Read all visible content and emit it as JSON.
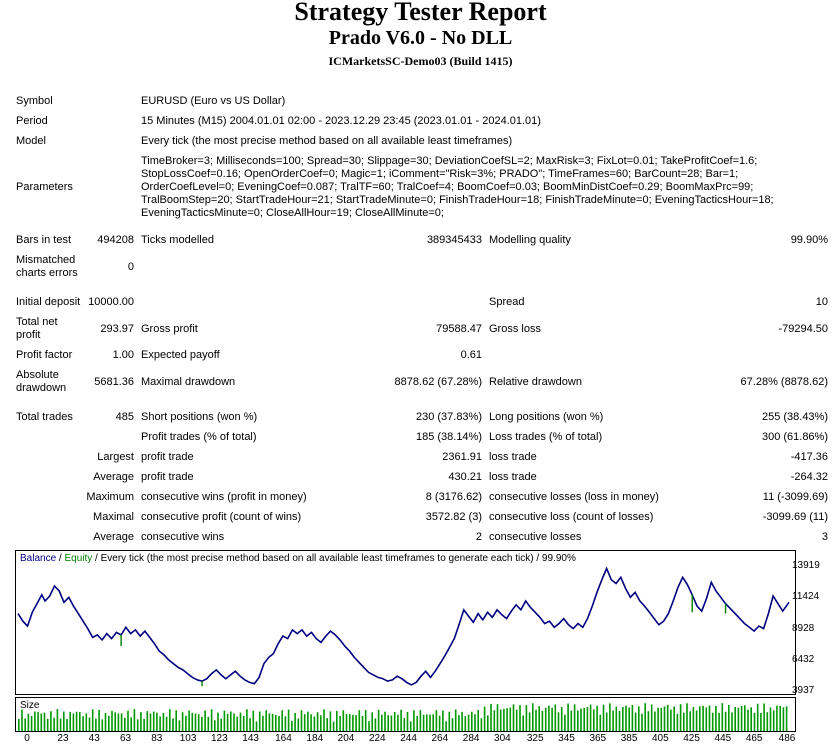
{
  "report": {
    "title": "Strategy Tester Report",
    "subtitle": "Prado V6.0 - No DLL",
    "server": "ICMarketsSC-Demo03 (Build 1415)"
  },
  "settings": {
    "symbol_label": "Symbol",
    "symbol": "EURUSD (Euro vs US Dollar)",
    "period_label": "Period",
    "period": "15 Minutes (M15) 2004.01.01 02:00 - 2023.12.29 23:45 (2023.01.01 - 2024.01.01)",
    "model_label": "Model",
    "model": "Every tick (the most precise method based on all available least timeframes)",
    "parameters_label": "Parameters",
    "parameters": "TimeBroker=3; Milliseconds=100; Spread=30; Slippage=30; DeviationCoefSL=2; MaxRisk=3; FixLot=0.01; TakeProfitCoef=1.6; StopLossCoef=0.16; OpenOrderCoef=0; Magic=1; iComment=\"Risk=3%; PRADO\"; TimeFrames=60; BarCount=28; Bar=1; OrderCoefLevel=0; EveningCoef=0.087; TralTF=60; TralCoef=4; BoomCoef=0.03; BoomMinDistCoef=0.29; BoomMaxPrc=99; TralBoomStep=20; StartTradeHour=21; StartTradeMinute=0; FinishTradeHour=18; FinishTradeMinute=0; EveningTacticsHour=18; EveningTacticsMinute=0; CloseAllHour=19; CloseAllMinute=0;"
  },
  "stats": {
    "bars_label": "Bars in test",
    "bars": "494208",
    "ticks_label": "Ticks modelled",
    "ticks": "389345433",
    "quality_label": "Modelling quality",
    "quality": "99.90%",
    "mismatch_label": "Mismatched charts errors",
    "mismatch": "0",
    "deposit_label": "Initial deposit",
    "deposit": "10000.00",
    "spread_label": "Spread",
    "spread": "10",
    "net_label": "Total net profit",
    "net": "293.97",
    "gross_profit_label": "Gross profit",
    "gross_profit": "79588.47",
    "gross_loss_label": "Gross loss",
    "gross_loss": "-79294.50",
    "pf_label": "Profit factor",
    "pf": "1.00",
    "payoff_label": "Expected payoff",
    "payoff": "0.61",
    "abs_dd_label": "Absolute drawdown",
    "abs_dd": "5681.36",
    "max_dd_label": "Maximal drawdown",
    "max_dd": "8878.62 (67.28%)",
    "rel_dd_label": "Relative drawdown",
    "rel_dd": "67.28% (8878.62)",
    "trades_label": "Total trades",
    "trades": "485",
    "short_label": "Short positions (won %)",
    "short": "230 (37.83%)",
    "long_label": "Long positions (won %)",
    "long": "255 (38.43%)",
    "ptrades_label": "Profit trades (% of total)",
    "ptrades": "185 (38.14%)",
    "ltrades_label": "Loss trades (% of total)",
    "ltrades": "300 (61.86%)",
    "largest_label": "Largest",
    "largest_profit_label": "profit trade",
    "largest_profit": "2361.91",
    "largest_loss_label": "loss trade",
    "largest_loss": "-417.36",
    "average_label": "Average",
    "average_profit_label": "profit trade",
    "average_profit": "430.21",
    "average_loss_label": "loss trade",
    "average_loss": "-264.32",
    "maximum_label": "Maximum",
    "max_wins_label": "consecutive wins (profit in money)",
    "max_wins": "8 (3176.62)",
    "max_losses_label": "consecutive losses (loss in money)",
    "max_losses": "11 (-3099.69)",
    "maximal_label": "Maximal",
    "maximal_profit_label": "consecutive profit (count of wins)",
    "maximal_profit": "3572.82 (3)",
    "maximal_loss_label": "consecutive loss (count of losses)",
    "maximal_loss": "-3099.69 (11)",
    "avg_label": "Average",
    "avg_wins_label": "consecutive wins",
    "avg_wins": "2",
    "avg_losses_label": "consecutive losses",
    "avg_losses": "3"
  },
  "chart_data": {
    "type": "line",
    "legend_balance": "Balance",
    "legend_sep1": " / ",
    "legend_equity": "Equity",
    "legend_rest": " / Every tick (the most precise method based on all available least timeframes to generate each tick) / 99.90%",
    "size_label": "Size",
    "ylim": [
      3937,
      13919
    ],
    "y_ticks": [
      "13919",
      "11424",
      "8928",
      "6432",
      "3937"
    ],
    "x_ticks": [
      "0",
      "23",
      "43",
      "63",
      "83",
      "103",
      "123",
      "143",
      "164",
      "184",
      "204",
      "224",
      "244",
      "264",
      "284",
      "304",
      "325",
      "345",
      "365",
      "385",
      "405",
      "425",
      "445",
      "465",
      "486"
    ],
    "x_range": [
      0,
      486
    ],
    "balance_color": "#000080",
    "equity_color": "#008000",
    "size_color": "#009900",
    "balance": [
      [
        0,
        10200
      ],
      [
        3,
        9600
      ],
      [
        6,
        9200
      ],
      [
        9,
        10300
      ],
      [
        12,
        11000
      ],
      [
        15,
        11700
      ],
      [
        17,
        11200
      ],
      [
        20,
        11600
      ],
      [
        23,
        12400
      ],
      [
        26,
        12000
      ],
      [
        29,
        11100
      ],
      [
        32,
        11500
      ],
      [
        35,
        10800
      ],
      [
        38,
        10200
      ],
      [
        41,
        9600
      ],
      [
        44,
        9000
      ],
      [
        47,
        8300
      ],
      [
        50,
        8500
      ],
      [
        53,
        8100
      ],
      [
        56,
        8600
      ],
      [
        59,
        8200
      ],
      [
        62,
        8700
      ],
      [
        65,
        8500
      ],
      [
        68,
        9100
      ],
      [
        71,
        8600
      ],
      [
        74,
        8900
      ],
      [
        77,
        8400
      ],
      [
        80,
        8800
      ],
      [
        83,
        8300
      ],
      [
        86,
        7800
      ],
      [
        89,
        7200
      ],
      [
        92,
        6900
      ],
      [
        95,
        6500
      ],
      [
        98,
        6200
      ],
      [
        101,
        5900
      ],
      [
        104,
        5700
      ],
      [
        107,
        5400
      ],
      [
        110,
        5100
      ],
      [
        113,
        4900
      ],
      [
        116,
        4800
      ],
      [
        119,
        5000
      ],
      [
        122,
        5400
      ],
      [
        125,
        5700
      ],
      [
        128,
        5300
      ],
      [
        131,
        5000
      ],
      [
        134,
        5300
      ],
      [
        137,
        5600
      ],
      [
        140,
        5200
      ],
      [
        143,
        4900
      ],
      [
        146,
        4700
      ],
      [
        149,
        4600
      ],
      [
        152,
        5100
      ],
      [
        155,
        6200
      ],
      [
        158,
        6700
      ],
      [
        161,
        7000
      ],
      [
        164,
        7800
      ],
      [
        167,
        8400
      ],
      [
        170,
        8200
      ],
      [
        173,
        8900
      ],
      [
        176,
        8600
      ],
      [
        179,
        8900
      ],
      [
        182,
        8400
      ],
      [
        185,
        8700
      ],
      [
        188,
        8200
      ],
      [
        191,
        7900
      ],
      [
        194,
        8400
      ],
      [
        197,
        8800
      ],
      [
        200,
        8500
      ],
      [
        203,
        8100
      ],
      [
        206,
        7600
      ],
      [
        209,
        7200
      ],
      [
        212,
        6700
      ],
      [
        215,
        6300
      ],
      [
        218,
        5900
      ],
      [
        221,
        5500
      ],
      [
        224,
        5300
      ],
      [
        227,
        5100
      ],
      [
        230,
        5000
      ],
      [
        233,
        4800
      ],
      [
        236,
        4900
      ],
      [
        239,
        5200
      ],
      [
        242,
        5000
      ],
      [
        245,
        4700
      ],
      [
        248,
        4500
      ],
      [
        251,
        4700
      ],
      [
        254,
        5200
      ],
      [
        257,
        5600
      ],
      [
        260,
        5100
      ],
      [
        263,
        5600
      ],
      [
        266,
        6200
      ],
      [
        269,
        6800
      ],
      [
        272,
        7500
      ],
      [
        275,
        8200
      ],
      [
        278,
        9300
      ],
      [
        281,
        10500
      ],
      [
        284,
        10000
      ],
      [
        287,
        9500
      ],
      [
        290,
        10200
      ],
      [
        293,
        9700
      ],
      [
        296,
        10300
      ],
      [
        299,
        9900
      ],
      [
        302,
        10500
      ],
      [
        305,
        10100
      ],
      [
        308,
        9800
      ],
      [
        311,
        10400
      ],
      [
        314,
        10900
      ],
      [
        317,
        10500
      ],
      [
        320,
        11200
      ],
      [
        323,
        10700
      ],
      [
        326,
        10300
      ],
      [
        329,
        9900
      ],
      [
        332,
        9400
      ],
      [
        335,
        9600
      ],
      [
        338,
        9100
      ],
      [
        341,
        9400
      ],
      [
        344,
        9800
      ],
      [
        347,
        9300
      ],
      [
        350,
        9000
      ],
      [
        353,
        9400
      ],
      [
        356,
        9100
      ],
      [
        359,
        9800
      ],
      [
        362,
        10800
      ],
      [
        365,
        11900
      ],
      [
        368,
        12900
      ],
      [
        371,
        13800
      ],
      [
        374,
        12900
      ],
      [
        377,
        12600
      ],
      [
        380,
        13100
      ],
      [
        383,
        12200
      ],
      [
        386,
        11500
      ],
      [
        389,
        11900
      ],
      [
        392,
        11200
      ],
      [
        395,
        10800
      ],
      [
        398,
        10300
      ],
      [
        401,
        9800
      ],
      [
        404,
        9300
      ],
      [
        407,
        9600
      ],
      [
        410,
        10200
      ],
      [
        413,
        11200
      ],
      [
        416,
        12300
      ],
      [
        419,
        13100
      ],
      [
        422,
        12500
      ],
      [
        425,
        11700
      ],
      [
        428,
        10800
      ],
      [
        431,
        10400
      ],
      [
        434,
        11400
      ],
      [
        437,
        12700
      ],
      [
        440,
        12000
      ],
      [
        443,
        11500
      ],
      [
        446,
        11000
      ],
      [
        449,
        10600
      ],
      [
        452,
        10200
      ],
      [
        455,
        9800
      ],
      [
        458,
        9400
      ],
      [
        461,
        9100
      ],
      [
        464,
        8800
      ],
      [
        467,
        9200
      ],
      [
        470,
        9000
      ],
      [
        473,
        10200
      ],
      [
        476,
        11600
      ],
      [
        479,
        11000
      ],
      [
        482,
        10400
      ],
      [
        486,
        11100
      ]
    ],
    "equity_dips": [
      [
        65,
        7600
      ],
      [
        116,
        4400
      ],
      [
        425,
        10300
      ],
      [
        446,
        10200
      ]
    ]
  }
}
